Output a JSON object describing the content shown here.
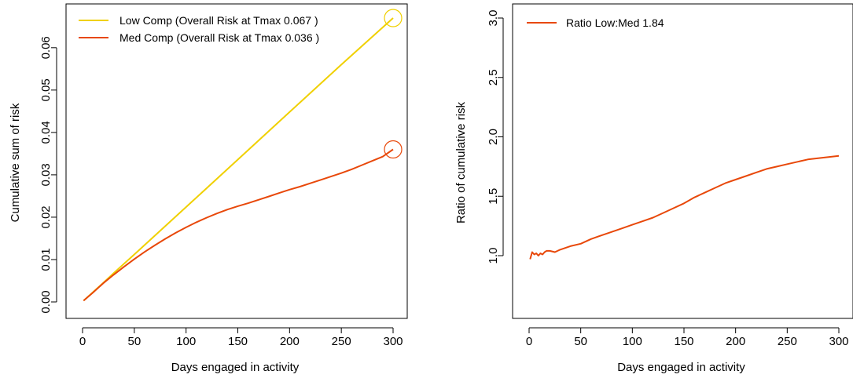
{
  "chart_data": [
    {
      "type": "line",
      "title": "",
      "xlabel": "Days engaged in activity",
      "ylabel": "Cumulative sum of risk",
      "xlim": [
        0,
        300
      ],
      "ylim": [
        0,
        0.067
      ],
      "xticks": [
        "0",
        "50",
        "100",
        "150",
        "200",
        "250",
        "300"
      ],
      "yticks": [
        "0.00",
        "0.01",
        "0.02",
        "0.03",
        "0.04",
        "0.05",
        "0.06"
      ],
      "grid": false,
      "legend_position": "top-left",
      "series": [
        {
          "name": "Low Comp (Overall Risk at Tmax 0.067 )",
          "color": "#F0D000",
          "x": [
            1,
            10,
            20,
            30,
            50,
            100,
            150,
            200,
            250,
            300
          ],
          "y": [
            0.0003,
            0.0023,
            0.0045,
            0.0068,
            0.0112,
            0.0224,
            0.0336,
            0.0448,
            0.056,
            0.067
          ]
        },
        {
          "name": "Med Comp (Overall Risk at Tmax 0.036 )",
          "color": "#E8480A",
          "x": [
            1,
            10,
            20,
            30,
            40,
            50,
            60,
            70,
            80,
            90,
            100,
            110,
            120,
            130,
            140,
            150,
            160,
            170,
            180,
            190,
            200,
            210,
            220,
            230,
            240,
            250,
            260,
            270,
            280,
            290,
            300
          ],
          "y": [
            0.0003,
            0.0022,
            0.0044,
            0.0064,
            0.0083,
            0.0101,
            0.0118,
            0.0134,
            0.0149,
            0.0163,
            0.0176,
            0.0188,
            0.0199,
            0.0209,
            0.0218,
            0.0226,
            0.0233,
            0.0241,
            0.0249,
            0.0257,
            0.0265,
            0.0272,
            0.028,
            0.0288,
            0.0296,
            0.0304,
            0.0313,
            0.0323,
            0.0333,
            0.0343,
            0.036
          ]
        }
      ],
      "annotations": [
        {
          "type": "circle",
          "x": 300,
          "y": 0.067,
          "color": "#F0D000"
        },
        {
          "type": "circle",
          "x": 300,
          "y": 0.036,
          "color": "#E8480A"
        }
      ]
    },
    {
      "type": "line",
      "title": "",
      "xlabel": "Days engaged in activity",
      "ylabel": "Ratio of cumulative risk",
      "xlim": [
        0,
        300
      ],
      "ylim": [
        0.83,
        3.0
      ],
      "xticks": [
        "0",
        "50",
        "100",
        "150",
        "200",
        "250",
        "300"
      ],
      "yticks": [
        "1.0",
        "1.5",
        "2.0",
        "2.5",
        "3.0"
      ],
      "grid": false,
      "legend_position": "top-left",
      "series": [
        {
          "name": "Ratio Low:Med 1.84",
          "color": "#E8480A",
          "x": [
            1,
            3,
            5,
            7,
            9,
            11,
            13,
            15,
            17,
            20,
            25,
            30,
            40,
            50,
            60,
            70,
            80,
            90,
            100,
            110,
            120,
            130,
            140,
            150,
            160,
            170,
            180,
            190,
            200,
            210,
            220,
            230,
            240,
            250,
            260,
            270,
            280,
            290,
            300
          ],
          "y": [
            0.97,
            1.03,
            1.01,
            1.02,
            1.0,
            1.02,
            1.01,
            1.03,
            1.04,
            1.04,
            1.03,
            1.05,
            1.08,
            1.1,
            1.14,
            1.17,
            1.2,
            1.23,
            1.26,
            1.29,
            1.32,
            1.36,
            1.4,
            1.44,
            1.49,
            1.53,
            1.57,
            1.61,
            1.64,
            1.67,
            1.7,
            1.73,
            1.75,
            1.77,
            1.79,
            1.81,
            1.82,
            1.83,
            1.84
          ]
        }
      ]
    }
  ]
}
